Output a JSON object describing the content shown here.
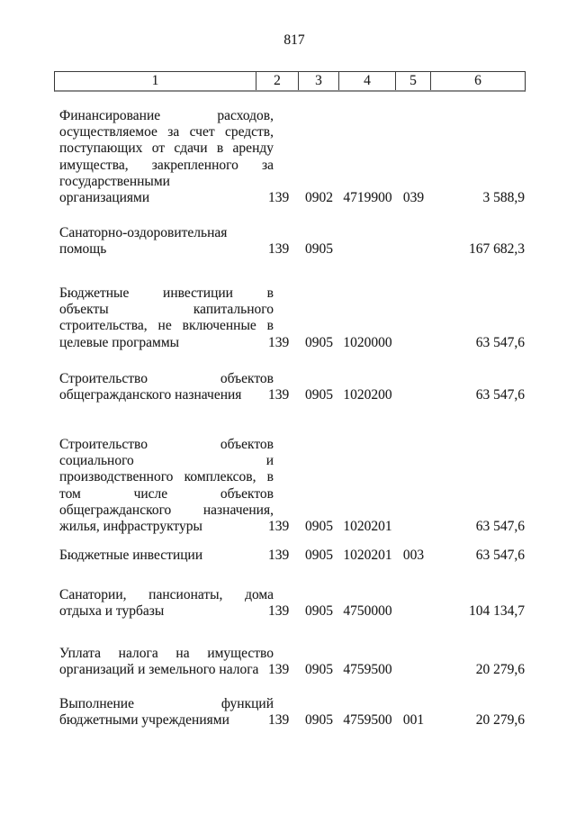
{
  "page": {
    "number": "817"
  },
  "colors": {
    "ink": "#1d1d1d",
    "paper": "#ffffff"
  },
  "table": {
    "header_columns": [
      "1",
      "2",
      "3",
      "4",
      "5",
      "6"
    ],
    "rows": [
      {
        "name_lines": [
          "Финансирование расходов,",
          "осуществляемое за счет средств,",
          "поступающих от сдачи в аренду",
          "имущества, закрепленного за",
          "государственными",
          "организациями"
        ],
        "codes": [
          "139",
          "0902",
          "4719900",
          "039"
        ],
        "amount": "3 588,9"
      },
      {
        "name_lines": [
          "Санаторно-оздоровительная",
          "помощь"
        ],
        "codes": [
          "139",
          "0905",
          "",
          ""
        ],
        "amount": "167 682,3"
      },
      {
        "name_lines": [
          "Бюджетные инвестиции в",
          "объекты капитального",
          "строительства, не включенные в",
          "целевые программы"
        ],
        "codes": [
          "139",
          "0905",
          "1020000",
          ""
        ],
        "amount": "63 547,6"
      },
      {
        "name_lines": [
          "Строительство объектов",
          "общегражданского назначения"
        ],
        "codes": [
          "139",
          "0905",
          "1020200",
          ""
        ],
        "amount": "63 547,6"
      },
      {
        "name_lines": [
          "Строительство объектов",
          "социального и",
          "производственного комплексов, в",
          "том числе объектов",
          "общегражданского назначения,",
          "жилья, инфраструктуры"
        ],
        "codes": [
          "139",
          "0905",
          "1020201",
          ""
        ],
        "amount": "63 547,6"
      },
      {
        "name_lines": [
          "Бюджетные инвестиции"
        ],
        "codes": [
          "139",
          "0905",
          "1020201",
          "003"
        ],
        "amount": "63 547,6"
      },
      {
        "name_lines": [
          "Санатории, пансионаты, дома",
          "отдыха и турбазы"
        ],
        "codes": [
          "139",
          "0905",
          "4750000",
          ""
        ],
        "amount": "104 134,7"
      },
      {
        "name_lines": [
          "Уплата налога на имущество",
          "организаций и земельного налога"
        ],
        "codes": [
          "139",
          "0905",
          "4759500",
          ""
        ],
        "amount": "20 279,6"
      },
      {
        "name_lines": [
          "Выполнение функций",
          "бюджетными учреждениями"
        ],
        "codes": [
          "139",
          "0905",
          "4759500",
          "001"
        ],
        "amount": "20 279,6"
      }
    ]
  }
}
